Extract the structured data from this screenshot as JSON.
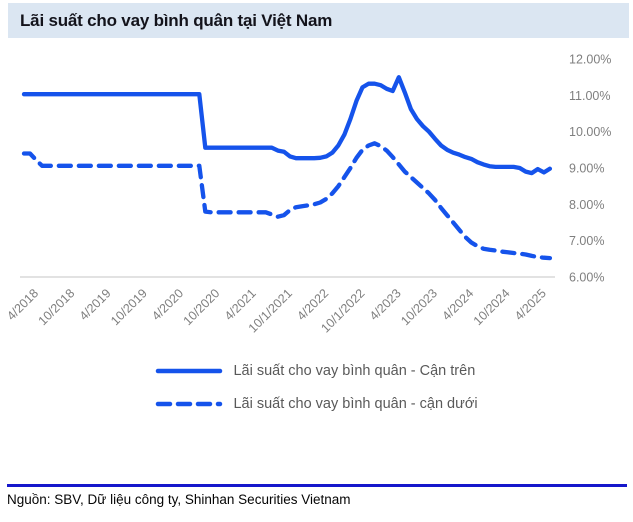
{
  "header": {
    "title": "Lãi suất cho vay bình quân tại Việt Nam"
  },
  "footer": {
    "source": "Nguồn: SBV, Dữ liệu công ty, Shinhan Securities Vietnam"
  },
  "colors": {
    "accent_blue": "#1553eb",
    "divider_blue": "#1617cb",
    "titlebar_bg": "#dbe6f2",
    "title_text": "#13131b",
    "axis_text": "#7f7f7f",
    "axis_line": "#d0d0d0",
    "legend_text": "#595959",
    "source_text": "#050505"
  },
  "chart_data": {
    "type": "line",
    "title": "Lãi suất cho vay bình quân tại Việt Nam",
    "xlabel": "",
    "ylabel": "",
    "ylim": [
      6,
      12
    ],
    "grid": "off",
    "legend_position": "bottom",
    "y_axis": {
      "side": "right",
      "ticks": [
        {
          "value": 12,
          "label": "12.00%"
        },
        {
          "value": 11,
          "label": "11.00%"
        },
        {
          "value": 10,
          "label": "10.00%"
        },
        {
          "value": 9,
          "label": "9.00%"
        },
        {
          "value": 8,
          "label": "8.00%"
        },
        {
          "value": 7,
          "label": "7.00%"
        },
        {
          "value": 6,
          "label": "6.00%"
        }
      ]
    },
    "x_axis": {
      "unit": "month",
      "start": "4/2018",
      "n_points": 88,
      "tick_positions": [
        0,
        6,
        12,
        18,
        24,
        30,
        36,
        42,
        48,
        54,
        60,
        66,
        72,
        78,
        84
      ],
      "tick_labels": [
        "4/2018",
        "10/2018",
        "4/2019",
        "10/2019",
        "4/2020",
        "10/2020",
        "4/2021",
        "10/1/2021",
        "4/2022",
        "10/1/2022",
        "4/2023",
        "10/2023",
        "4/2024",
        "10/2024",
        "4/2025"
      ]
    },
    "series": [
      {
        "name": "Lãi suất cho vay bình quân - Cận trên",
        "style": "solid",
        "color": "#1553eb",
        "values": [
          11.03,
          11.03,
          11.03,
          11.03,
          11.03,
          11.03,
          11.03,
          11.03,
          11.03,
          11.03,
          11.03,
          11.03,
          11.03,
          11.03,
          11.03,
          11.03,
          11.03,
          11.03,
          11.03,
          11.03,
          11.03,
          11.03,
          11.03,
          11.03,
          11.03,
          11.03,
          11.03,
          11.03,
          11.03,
          11.03,
          9.56,
          9.56,
          9.56,
          9.56,
          9.56,
          9.56,
          9.56,
          9.56,
          9.56,
          9.56,
          9.56,
          9.56,
          9.48,
          9.45,
          9.32,
          9.27,
          9.27,
          9.27,
          9.27,
          9.28,
          9.32,
          9.42,
          9.62,
          9.92,
          10.35,
          10.85,
          11.22,
          11.32,
          11.32,
          11.28,
          11.18,
          11.12,
          11.5,
          11.08,
          10.62,
          10.35,
          10.15,
          10.0,
          9.8,
          9.62,
          9.5,
          9.42,
          9.37,
          9.3,
          9.25,
          9.16,
          9.1,
          9.05,
          9.03,
          9.03,
          9.03,
          9.03,
          9.0,
          8.9,
          8.86,
          8.97,
          8.88,
          8.98
        ]
      },
      {
        "name": "Lãi suất cho vay bình quân - cận dưới",
        "style": "dashed",
        "color": "#1553eb",
        "values": [
          9.4,
          9.4,
          9.22,
          9.06,
          9.06,
          9.06,
          9.06,
          9.06,
          9.06,
          9.06,
          9.06,
          9.06,
          9.06,
          9.06,
          9.06,
          9.06,
          9.06,
          9.06,
          9.06,
          9.06,
          9.06,
          9.06,
          9.06,
          9.06,
          9.06,
          9.06,
          9.06,
          9.06,
          9.06,
          9.06,
          7.8,
          7.78,
          7.78,
          7.78,
          7.78,
          7.78,
          7.78,
          7.78,
          7.78,
          7.78,
          7.78,
          7.72,
          7.66,
          7.7,
          7.84,
          7.92,
          7.95,
          7.97,
          8.0,
          8.05,
          8.15,
          8.3,
          8.5,
          8.75,
          9.0,
          9.28,
          9.5,
          9.62,
          9.68,
          9.6,
          9.48,
          9.3,
          9.1,
          8.9,
          8.75,
          8.6,
          8.45,
          8.3,
          8.12,
          7.9,
          7.7,
          7.5,
          7.3,
          7.1,
          6.95,
          6.85,
          6.78,
          6.75,
          6.73,
          6.7,
          6.68,
          6.66,
          6.64,
          6.62,
          6.58,
          6.55,
          6.53,
          6.52
        ]
      }
    ]
  }
}
